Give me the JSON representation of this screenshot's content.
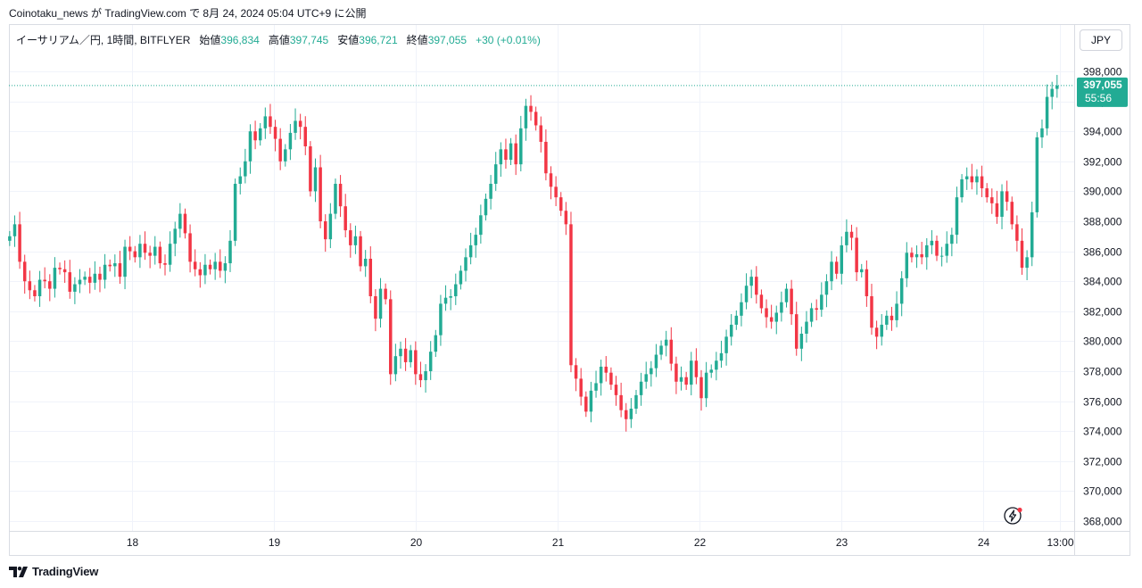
{
  "header": {
    "published_text": "Coinotaku_news が TradingView.com で 8月 24, 2024 05:04 UTC+9 に公開"
  },
  "legend": {
    "symbol_text": "イーサリアム／円, 1時間, BITFLYER",
    "open_label": "始値",
    "open_value": "396,834",
    "high_label": "高値",
    "high_value": "397,745",
    "low_label": "安値",
    "low_value": "396,721",
    "close_label": "終値",
    "close_value": "397,055",
    "change_text": "+30 (+0.01%)"
  },
  "currency_button": "JPY",
  "price_tag": {
    "price": "397,055",
    "countdown": "55:56"
  },
  "footer": {
    "brand": "TradingView"
  },
  "colors": {
    "up": "#22ab94",
    "down": "#f23645",
    "grid": "#f0f3fa",
    "axis_text": "#131722"
  },
  "chart_data": {
    "type": "candlestick",
    "title": "",
    "xlabel": "",
    "ylabel": "",
    "ylim": [
      367000,
      399000
    ],
    "y_ticks": [
      368000,
      370000,
      372000,
      374000,
      376000,
      378000,
      380000,
      382000,
      384000,
      386000,
      388000,
      390000,
      392000,
      394000,
      396000,
      398000
    ],
    "y_tick_labels": [
      "368,000",
      "370,000",
      "372,000",
      "374,000",
      "376,000",
      "378,000",
      "380,000",
      "382,000",
      "384,000",
      "386,000",
      "388,000",
      "390,000",
      "392,000",
      "394,000",
      "396,000",
      "398,000"
    ],
    "x_ticks": [
      {
        "label": "18",
        "hours": 24
      },
      {
        "label": "19",
        "hours": 48
      },
      {
        "label": "20",
        "hours": 72
      },
      {
        "label": "21",
        "hours": 96
      },
      {
        "label": "22",
        "hours": 120
      },
      {
        "label": "23",
        "hours": 144
      },
      {
        "label": "24",
        "hours": 168
      },
      {
        "label": "13:00",
        "hours": 181
      }
    ],
    "x_range_hours": [
      3,
      183
    ],
    "current_price": 397055,
    "grid": true,
    "closes": [
      387000,
      387800,
      385300,
      384000,
      383400,
      383000,
      384100,
      384000,
      383500,
      384900,
      384800,
      384600,
      383300,
      383800,
      384100,
      384300,
      383900,
      384500,
      384100,
      385100,
      385000,
      385200,
      384300,
      386300,
      386000,
      385600,
      386500,
      385900,
      385700,
      386300,
      385200,
      385100,
      386500,
      387500,
      388500,
      387200,
      385300,
      384800,
      384400,
      385100,
      384800,
      385300,
      384700,
      385200,
      386700,
      390500,
      391000,
      392000,
      394000,
      393400,
      394200,
      395000,
      394300,
      393500,
      392000,
      392800,
      393900,
      394700,
      394300,
      393000,
      390000,
      391600,
      388000,
      386800,
      388500,
      390500,
      389000,
      387400,
      386400,
      387000,
      385000,
      385500,
      383000,
      381500,
      383500,
      382800,
      377800,
      379000,
      379500,
      378600,
      379400,
      377800,
      377400,
      378000,
      379300,
      380400,
      382500,
      382900,
      383000,
      383800,
      384700,
      385600,
      386400,
      387100,
      388400,
      389500,
      390500,
      391800,
      392800,
      392100,
      393200,
      391800,
      394200,
      395700,
      395300,
      394400,
      393300,
      391200,
      390300,
      389600,
      388700,
      387800,
      378400,
      377500,
      376300,
      375300,
      376700,
      377200,
      378300,
      377900,
      377100,
      376400,
      375400,
      374800,
      375500,
      376400,
      377300,
      377800,
      378200,
      379100,
      379700,
      380100,
      378500,
      377300,
      377600,
      377100,
      378700,
      377600,
      376200,
      377900,
      378100,
      378700,
      379200,
      380300,
      381100,
      381700,
      382600,
      383700,
      384300,
      383100,
      382200,
      381600,
      381300,
      381900,
      382600,
      383500,
      381800,
      379500,
      380500,
      381300,
      382200,
      382100,
      383100,
      384000,
      385300,
      384500,
      386400,
      387300,
      386900,
      384600,
      384800,
      383000,
      380900,
      380300,
      381100,
      381700,
      381400,
      382500,
      384200,
      385900,
      385600,
      385800,
      385600,
      386400,
      386700,
      385700,
      385700,
      386500,
      387100,
      389600,
      390800,
      391000,
      390600,
      391000,
      390200,
      389600,
      389200,
      388300,
      390000,
      389300,
      387800,
      386700,
      384900,
      385600,
      388600,
      393600,
      394200,
      396300,
      396834,
      397055
    ]
  }
}
